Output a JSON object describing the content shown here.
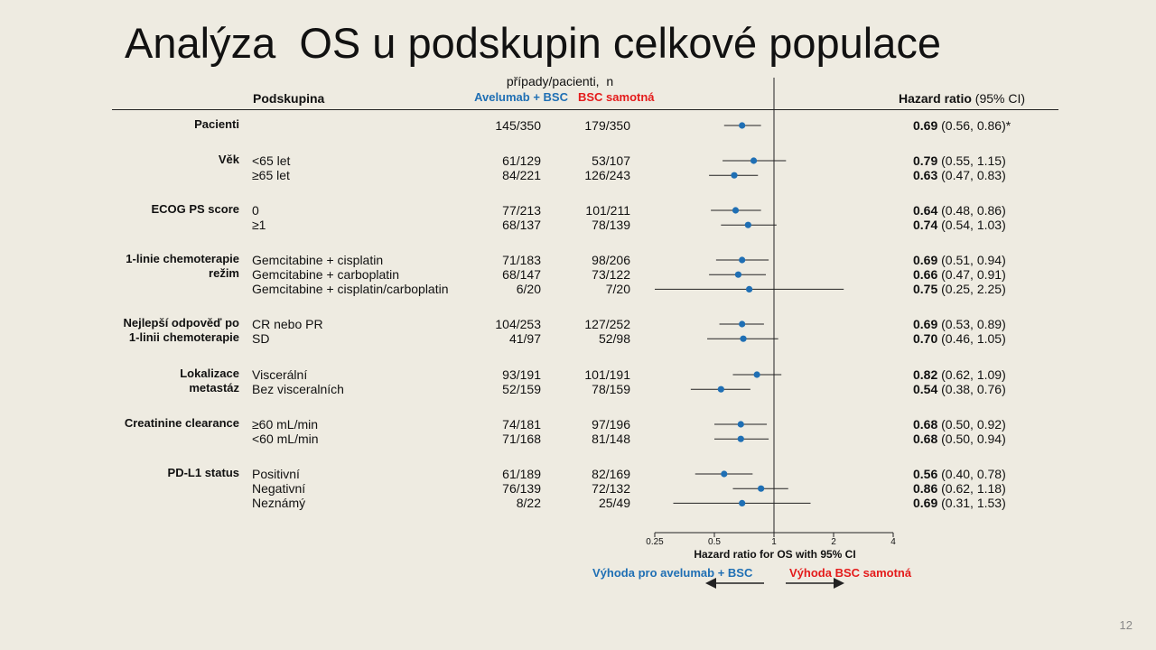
{
  "title": "Analýza  OS u podskupin celkové populace",
  "header": {
    "counts_label": "případy/pacienti,  n",
    "col_subgroup": "Podskupina",
    "col_arm1": "Avelumab + BSC",
    "col_arm2": "BSC samotná",
    "col_hr": "Hazard ratio",
    "col_hr_ci": " (95% CI)"
  },
  "axis": {
    "xlabel": "Hazard ratio for OS with 95% CI",
    "ticks": [
      {
        "value": 0.25,
        "label": "0.25"
      },
      {
        "value": 0.5,
        "label": "0.5"
      },
      {
        "value": 1,
        "label": "1"
      },
      {
        "value": 2,
        "label": "2"
      },
      {
        "value": 4,
        "label": "4"
      }
    ]
  },
  "favors": {
    "left": "Výhoda pro avelumab + BSC",
    "right": "Výhoda BSC samotná"
  },
  "page_number": "12",
  "chart_data": {
    "type": "forest",
    "xlabel": "Hazard ratio for OS with 95% CI",
    "xscale": "log2",
    "xlim": [
      0.25,
      4
    ],
    "reference_line": 1,
    "colors": {
      "point": "#1f6fb4",
      "arm1": "#1f6fb4",
      "arm2": "#e41b1b"
    },
    "groups": [
      {
        "label": "Pacienti",
        "rows": [
          {
            "sub": "",
            "arm1": "145/350",
            "arm2": "179/350",
            "hr": 0.69,
            "lo": 0.56,
            "hi": 0.86,
            "hr_text": "0.69",
            "ci_text": " (0.56, 0.86)*"
          }
        ]
      },
      {
        "label": "Věk",
        "rows": [
          {
            "sub": "<65 let",
            "arm1": "61/129",
            "arm2": "53/107",
            "hr": 0.79,
            "lo": 0.55,
            "hi": 1.15,
            "hr_text": "0.79",
            "ci_text": " (0.55, 1.15)"
          },
          {
            "sub": "≥65 let",
            "arm1": "84/221",
            "arm2": "126/243",
            "hr": 0.63,
            "lo": 0.47,
            "hi": 0.83,
            "hr_text": "0.63",
            "ci_text": " (0.47, 0.83)"
          }
        ]
      },
      {
        "label": "ECOG PS score",
        "rows": [
          {
            "sub": "0",
            "arm1": "77/213",
            "arm2": "101/211",
            "hr": 0.64,
            "lo": 0.48,
            "hi": 0.86,
            "hr_text": "0.64",
            "ci_text": " (0.48, 0.86)"
          },
          {
            "sub": "≥1",
            "arm1": "68/137",
            "arm2": "78/139",
            "hr": 0.74,
            "lo": 0.54,
            "hi": 1.03,
            "hr_text": "0.74",
            "ci_text": " (0.54, 1.03)"
          }
        ]
      },
      {
        "label": "1-linie chemoterapie\nrežim",
        "rows": [
          {
            "sub": "Gemcitabine + cisplatin",
            "arm1": "71/183",
            "arm2": "98/206",
            "hr": 0.69,
            "lo": 0.51,
            "hi": 0.94,
            "hr_text": "0.69",
            "ci_text": " (0.51, 0.94)"
          },
          {
            "sub": "Gemcitabine + carboplatin",
            "arm1": "68/147",
            "arm2": "73/122",
            "hr": 0.66,
            "lo": 0.47,
            "hi": 0.91,
            "hr_text": "0.66",
            "ci_text": " (0.47, 0.91)"
          },
          {
            "sub": "Gemcitabine + cisplatin/carboplatin",
            "arm1": "6/20",
            "arm2": "7/20",
            "hr": 0.75,
            "lo": 0.25,
            "hi": 2.25,
            "hr_text": "0.75",
            "ci_text": " (0.25, 2.25)"
          }
        ]
      },
      {
        "label": "Nejlepší odpověď po\n1-linii chemoterapie",
        "rows": [
          {
            "sub": "CR nebo PR",
            "arm1": "104/253",
            "arm2": "127/252",
            "hr": 0.69,
            "lo": 0.53,
            "hi": 0.89,
            "hr_text": "0.69",
            "ci_text": " (0.53, 0.89)"
          },
          {
            "sub": "SD",
            "arm1": "41/97",
            "arm2": "52/98",
            "hr": 0.7,
            "lo": 0.46,
            "hi": 1.05,
            "hr_text": "0.70",
            "ci_text": " (0.46, 1.05)"
          }
        ]
      },
      {
        "label": "Lokalizace\nmetastáz",
        "rows": [
          {
            "sub": "Viscerální",
            "arm1": "93/191",
            "arm2": "101/191",
            "hr": 0.82,
            "lo": 0.62,
            "hi": 1.09,
            "hr_text": "0.82",
            "ci_text": " (0.62, 1.09)"
          },
          {
            "sub": "Bez visceralních",
            "arm1": "52/159",
            "arm2": "78/159",
            "hr": 0.54,
            "lo": 0.38,
            "hi": 0.76,
            "hr_text": "0.54",
            "ci_text": " (0.38, 0.76)"
          }
        ]
      },
      {
        "label": "Creatinine clearance",
        "rows": [
          {
            "sub": "≥60 mL/min",
            "arm1": "74/181",
            "arm2": "97/196",
            "hr": 0.68,
            "lo": 0.5,
            "hi": 0.92,
            "hr_text": "0.68",
            "ci_text": " (0.50, 0.92)"
          },
          {
            "sub": "<60 mL/min",
            "arm1": "71/168",
            "arm2": "81/148",
            "hr": 0.68,
            "lo": 0.5,
            "hi": 0.94,
            "hr_text": "0.68",
            "ci_text": " (0.50, 0.94)"
          }
        ]
      },
      {
        "label": "PD-L1 status",
        "rows": [
          {
            "sub": "Positivní",
            "arm1": "61/189",
            "arm2": "82/169",
            "hr": 0.56,
            "lo": 0.4,
            "hi": 0.78,
            "hr_text": "0.56",
            "ci_text": " (0.40, 0.78)"
          },
          {
            "sub": "Negativní",
            "arm1": "76/139",
            "arm2": "72/132",
            "hr": 0.86,
            "lo": 0.62,
            "hi": 1.18,
            "hr_text": "0.86",
            "ci_text": " (0.62, 1.18)"
          },
          {
            "sub": "Neznámý",
            "arm1": "8/22",
            "arm2": "25/49",
            "hr": 0.69,
            "lo": 0.31,
            "hi": 1.53,
            "hr_text": "0.69",
            "ci_text": " (0.31, 1.53)"
          }
        ]
      }
    ]
  }
}
